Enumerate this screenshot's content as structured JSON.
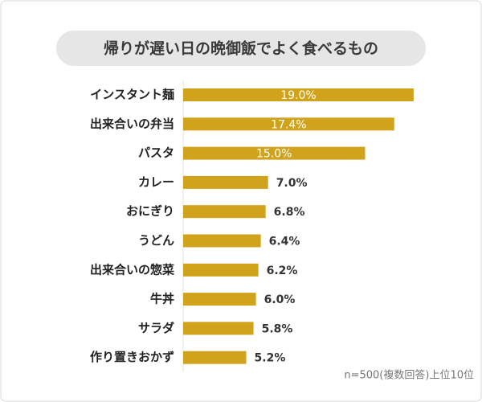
{
  "chart_data": {
    "type": "bar",
    "orientation": "horizontal",
    "title": "帰りが遅い日の晩御飯でよく食べるもの",
    "categories": [
      "インスタント麺",
      "出来合いの弁当",
      "パスタ",
      "カレー",
      "おにぎり",
      "うどん",
      "出来合いの惣菜",
      "牛丼",
      "サラダ",
      "作り置きおかず"
    ],
    "values": [
      19.0,
      17.4,
      15.0,
      7.0,
      6.8,
      6.4,
      6.2,
      6.0,
      5.8,
      5.2
    ],
    "value_labels": [
      "19.0%",
      "17.4%",
      "15.0%",
      "7.0%",
      "6.8%",
      "6.4%",
      "6.2%",
      "6.0%",
      "5.8%",
      "5.2%"
    ],
    "color": "#d1a21b",
    "xlim": [
      0,
      20
    ],
    "note": "n=500(複数回答)上位10位"
  }
}
